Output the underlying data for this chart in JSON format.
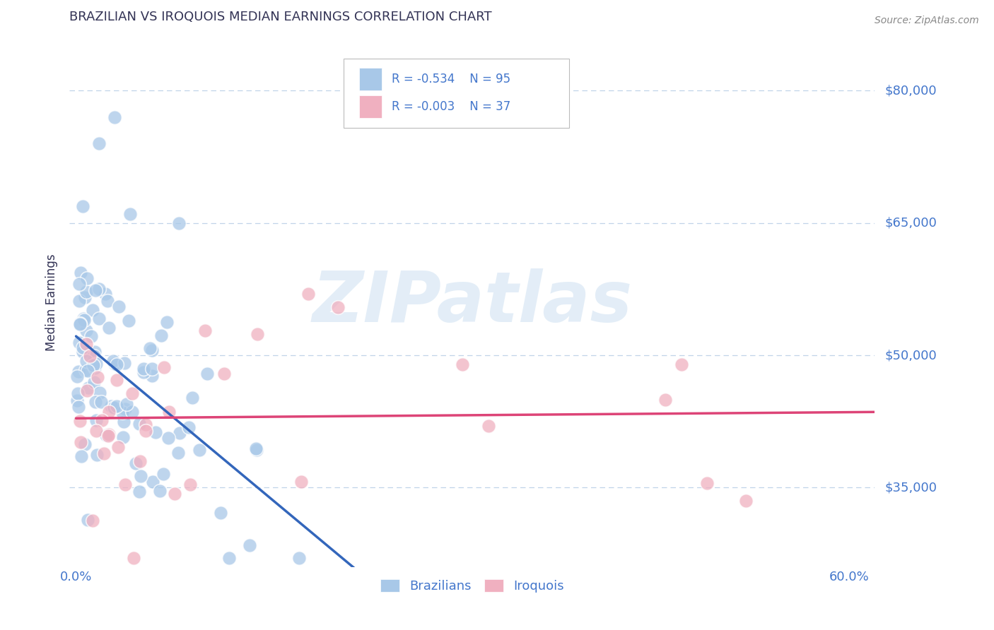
{
  "title": "BRAZILIAN VS IROQUOIS MEDIAN EARNINGS CORRELATION CHART",
  "source_text": "Source: ZipAtlas.com",
  "ylabel": "Median Earnings",
  "xlim": [
    -0.005,
    0.62
  ],
  "ylim": [
    26000,
    86000
  ],
  "xtick_labels": [
    "0.0%",
    "",
    "",
    "",
    "",
    "",
    "60.0%"
  ],
  "xtick_values": [
    0.0,
    0.1,
    0.2,
    0.3,
    0.4,
    0.5,
    0.6
  ],
  "ytick_values": [
    35000,
    50000,
    65000,
    80000
  ],
  "ytick_labels": [
    "$35,000",
    "$50,000",
    "$65,000",
    "$80,000"
  ],
  "blue_color": "#a8c8e8",
  "pink_color": "#f0b0c0",
  "trend_blue": "#3366bb",
  "trend_pink": "#dd4477",
  "watermark_color": "#c8ddf0",
  "watermark": "ZIPatlas",
  "legend_r_blue": "R = -0.534",
  "legend_n_blue": "N = 95",
  "legend_r_pink": "R = -0.003",
  "legend_n_pink": "N = 37",
  "legend_label_blue": "Brazilians",
  "legend_label_pink": "Iroquois",
  "title_color": "#333355",
  "axis_label_color": "#333355",
  "tick_label_color": "#4477cc",
  "grid_color": "#c0d4e8",
  "background_color": "#ffffff"
}
